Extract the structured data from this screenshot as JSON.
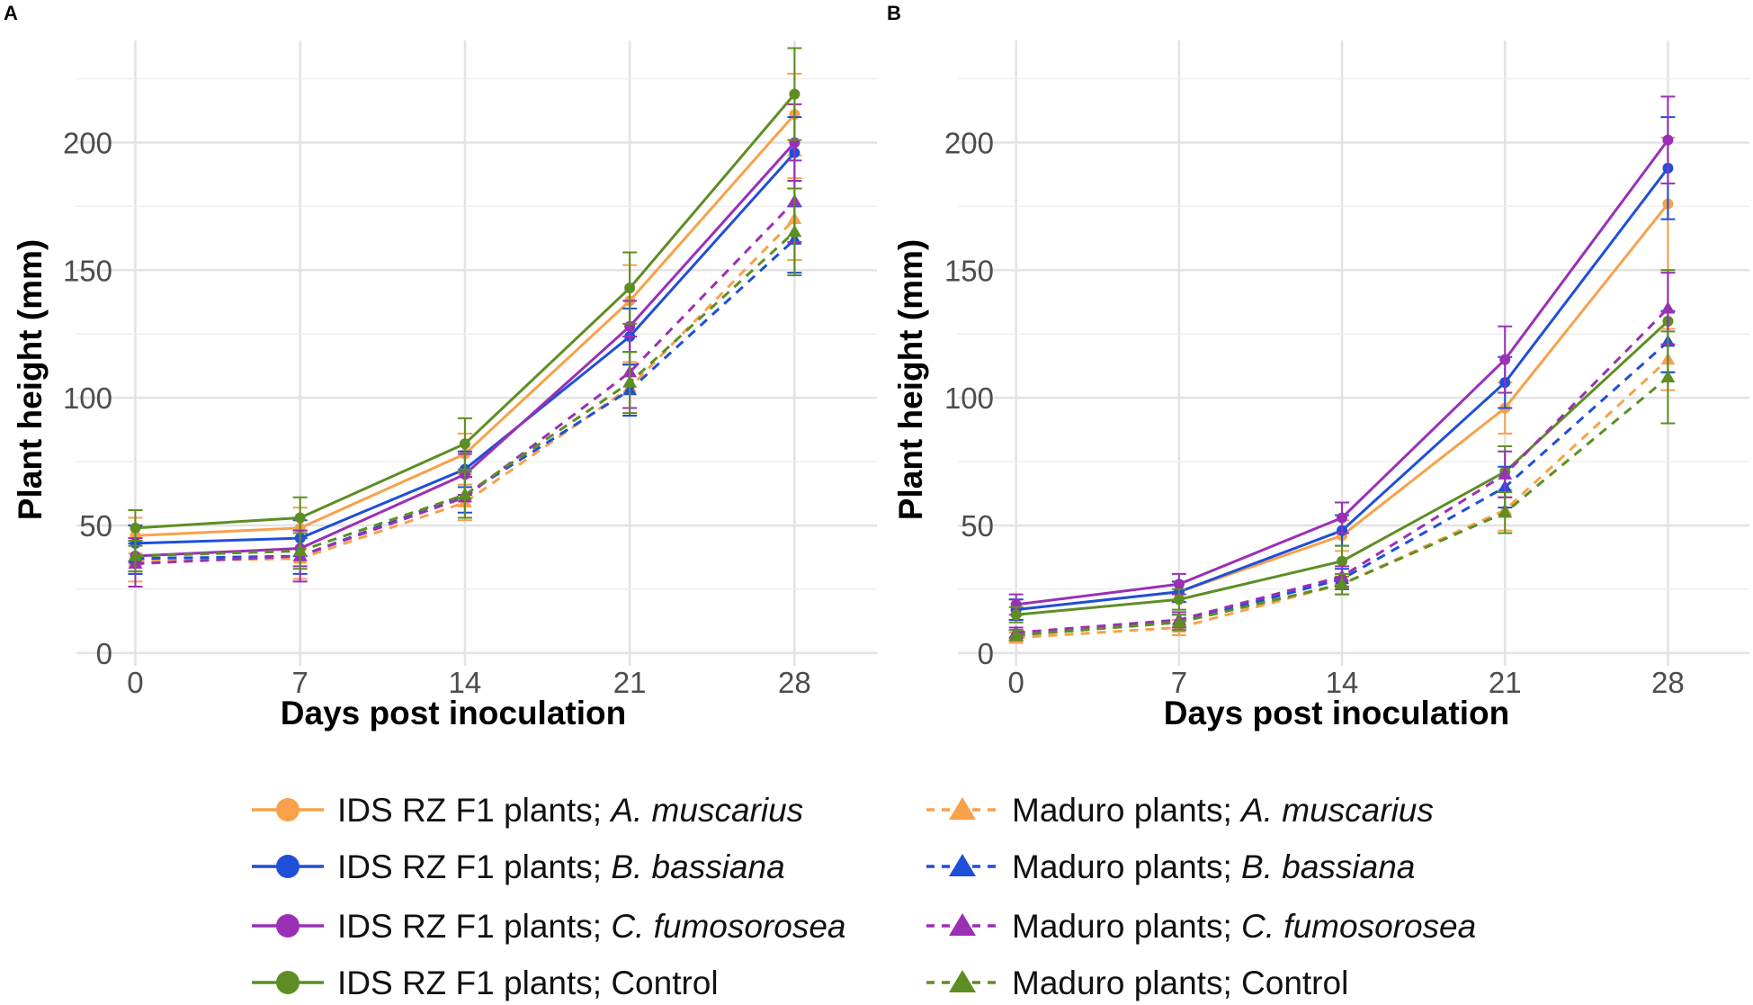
{
  "chart_data": [
    {
      "panel": "A",
      "type": "line",
      "xlabel": "Days post inoculation",
      "ylabel": "Plant height (mm)",
      "x": [
        0,
        7,
        14,
        21,
        28
      ],
      "xlim": [
        -2.5,
        31.5
      ],
      "ylim": [
        -5,
        240
      ],
      "yticks": [
        0,
        50,
        100,
        150,
        200
      ],
      "grid": true,
      "series": [
        {
          "name": "IDS RZ F1 plants; A. muscarius",
          "color": "#F8A14A",
          "dashed": false,
          "marker": "circle",
          "values": [
            46,
            49,
            78,
            138,
            211
          ],
          "errors": [
            7,
            8,
            8,
            14,
            16
          ]
        },
        {
          "name": "IDS RZ F1 plants; B. bassiana",
          "color": "#1F4FD8",
          "dashed": false,
          "marker": "circle",
          "values": [
            43,
            45,
            72,
            124,
            196
          ],
          "errors": [
            7,
            7,
            7,
            11,
            14
          ]
        },
        {
          "name": "IDS RZ F1 plants; C. fumosorosea",
          "color": "#9A30B6",
          "dashed": false,
          "marker": "circle",
          "values": [
            38,
            41,
            70,
            128,
            200
          ],
          "errors": [
            7,
            7,
            8,
            10,
            15
          ]
        },
        {
          "name": "IDS RZ F1 plants; Control",
          "color": "#5E8E23",
          "dashed": false,
          "marker": "circle",
          "values": [
            49,
            53,
            82,
            143,
            219
          ],
          "errors": [
            7,
            8,
            10,
            14,
            18
          ]
        },
        {
          "name": "Maduro plants; A. muscarius",
          "color": "#F8A14A",
          "dashed": true,
          "marker": "triangle",
          "values": [
            36,
            37,
            59,
            104,
            170
          ],
          "errors": [
            8,
            8,
            7,
            10,
            16
          ]
        },
        {
          "name": "Maduro plants; B. bassiana",
          "color": "#1F4FD8",
          "dashed": true,
          "marker": "triangle",
          "values": [
            37,
            38,
            62,
            103,
            162
          ],
          "errors": [
            6,
            7,
            7,
            10,
            13
          ]
        },
        {
          "name": "Maduro plants; C. fumosorosea",
          "color": "#9A30B6",
          "dashed": true,
          "marker": "triangle",
          "values": [
            35,
            38,
            61,
            110,
            177
          ],
          "errors": [
            9,
            10,
            8,
            14,
            16
          ]
        },
        {
          "name": "Maduro plants; Control",
          "color": "#5E8E23",
          "dashed": true,
          "marker": "triangle",
          "values": [
            38,
            40,
            62,
            106,
            165
          ],
          "errors": [
            6,
            7,
            9,
            12,
            17
          ]
        }
      ]
    },
    {
      "panel": "B",
      "type": "line",
      "xlabel": "Days post inoculation",
      "ylabel": "Plant height (mm)",
      "x": [
        0,
        7,
        14,
        21,
        28
      ],
      "xlim": [
        -2.5,
        31.5
      ],
      "ylim": [
        -5,
        240
      ],
      "yticks": [
        0,
        50,
        100,
        150,
        200
      ],
      "grid": true,
      "series": [
        {
          "name": "IDS RZ F1 plants; A. muscarius",
          "color": "#F8A14A",
          "dashed": false,
          "marker": "circle",
          "values": [
            17,
            24,
            46,
            96,
            176
          ],
          "errors": [
            4,
            4,
            6,
            10,
            26
          ]
        },
        {
          "name": "IDS RZ F1 plants; B. bassiana",
          "color": "#1F4FD8",
          "dashed": false,
          "marker": "circle",
          "values": [
            17,
            24,
            48,
            106,
            190
          ],
          "errors": [
            4,
            4,
            6,
            10,
            20
          ]
        },
        {
          "name": "IDS RZ F1 plants; C. fumosorosea",
          "color": "#9A30B6",
          "dashed": false,
          "marker": "circle",
          "values": [
            19,
            27,
            53,
            115,
            201
          ],
          "errors": [
            4,
            4,
            6,
            13,
            17
          ]
        },
        {
          "name": "IDS RZ F1 plants; Control",
          "color": "#5E8E23",
          "dashed": false,
          "marker": "circle",
          "values": [
            15,
            21,
            36,
            71,
            130
          ],
          "errors": [
            3,
            4,
            6,
            10,
            20
          ]
        },
        {
          "name": "Maduro plants; A. muscarius",
          "color": "#F8A14A",
          "dashed": true,
          "marker": "triangle",
          "values": [
            6,
            10,
            27,
            56,
            115
          ],
          "errors": [
            2,
            3,
            4,
            8,
            12
          ]
        },
        {
          "name": "Maduro plants; B. bassiana",
          "color": "#1F4FD8",
          "dashed": true,
          "marker": "triangle",
          "values": [
            7,
            12,
            29,
            65,
            122
          ],
          "errors": [
            2,
            3,
            4,
            8,
            12
          ]
        },
        {
          "name": "Maduro plants; C. fumosorosea",
          "color": "#9A30B6",
          "dashed": true,
          "marker": "triangle",
          "values": [
            8,
            13,
            30,
            70,
            135
          ],
          "errors": [
            2,
            3,
            4,
            9,
            14
          ]
        },
        {
          "name": "Maduro plants; Control",
          "color": "#5E8E23",
          "dashed": true,
          "marker": "triangle",
          "values": [
            7,
            12,
            27,
            55,
            108
          ],
          "errors": [
            2,
            3,
            4,
            8,
            18
          ]
        }
      ]
    }
  ],
  "legend": {
    "placement": "bottom",
    "entries": [
      {
        "prefix": "IDS RZ F1 plants; ",
        "species": "A. muscarius",
        "italic": true,
        "color": "#F8A14A",
        "dashed": false,
        "marker": "circle"
      },
      {
        "prefix": "IDS RZ F1 plants; ",
        "species": "B. bassiana",
        "italic": true,
        "color": "#1F4FD8",
        "dashed": false,
        "marker": "circle"
      },
      {
        "prefix": "IDS RZ F1 plants; ",
        "species": "C. fumosorosea",
        "italic": true,
        "color": "#9A30B6",
        "dashed": false,
        "marker": "circle"
      },
      {
        "prefix": "IDS RZ F1 plants; ",
        "species": "Control",
        "italic": false,
        "color": "#5E8E23",
        "dashed": false,
        "marker": "circle"
      },
      {
        "prefix": "Maduro plants; ",
        "species": "A. muscarius",
        "italic": true,
        "color": "#F8A14A",
        "dashed": true,
        "marker": "triangle"
      },
      {
        "prefix": "Maduro plants; ",
        "species": "B. bassiana",
        "italic": true,
        "color": "#1F4FD8",
        "dashed": true,
        "marker": "triangle"
      },
      {
        "prefix": "Maduro plants; ",
        "species": "C. fumosorosea",
        "italic": true,
        "color": "#9A30B6",
        "dashed": true,
        "marker": "triangle"
      },
      {
        "prefix": "Maduro plants; ",
        "species": "Control",
        "italic": false,
        "color": "#5E8E23",
        "dashed": true,
        "marker": "triangle"
      }
    ]
  }
}
